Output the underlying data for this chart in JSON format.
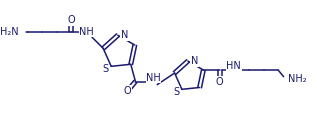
{
  "background_color": "#ffffff",
  "line_color": "#1a1a6e",
  "line_width": 1.1,
  "font_size": 6.5,
  "figsize": [
    3.17,
    1.25
  ],
  "dpi": 100,
  "xlim": [
    0,
    10
  ],
  "ylim": [
    0,
    4
  ]
}
